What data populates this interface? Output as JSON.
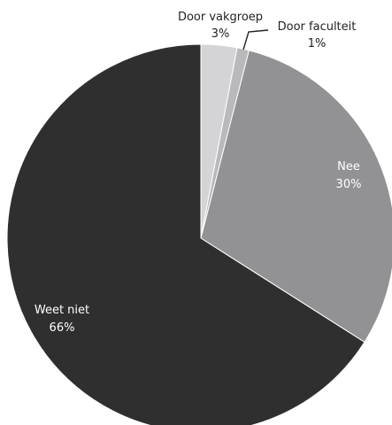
{
  "chart_data": {
    "type": "pie",
    "title": "",
    "start_angle": "12 o'clock",
    "direction": "clockwise",
    "slices": [
      {
        "label": "Door vakgroep",
        "value": 3,
        "value_label": "3%",
        "color": "#d4d4d6",
        "label_color": "#222222",
        "label_placement": "outside-top"
      },
      {
        "label": "Door faculteit",
        "value": 1,
        "value_label": "1%",
        "color": "#b9b9bc",
        "label_color": "#222222",
        "label_placement": "outside-top-right-with-leader"
      },
      {
        "label": "Nee",
        "value": 30,
        "value_label": "30%",
        "color": "#929295",
        "label_color": "#ffffff",
        "label_placement": "inside"
      },
      {
        "label": "Weet niet",
        "value": 66,
        "value_label": "66%",
        "color": "#2f2f2f",
        "label_color": "#ffffff",
        "label_placement": "inside"
      }
    ]
  }
}
